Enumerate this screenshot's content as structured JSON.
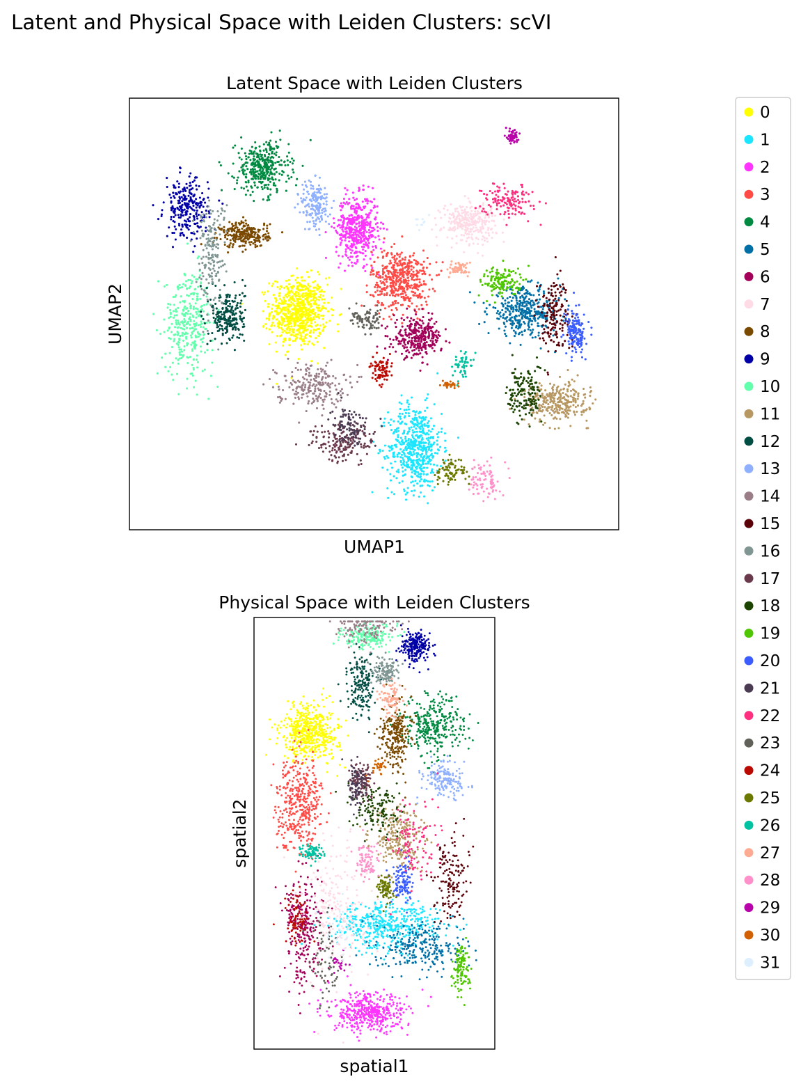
{
  "figure": {
    "suptitle": "Latent and Physical Space with Leiden Clusters: scVI"
  },
  "chart_data": [
    {
      "type": "scatter",
      "title": "Latent Space with Leiden Clusters",
      "xlabel": "UMAP1",
      "ylabel": "UMAP2",
      "xlim": [
        0,
        100
      ],
      "ylim": [
        0,
        100
      ],
      "grid": false,
      "series": [
        {
          "name": "0",
          "cluster": 0,
          "x": 34.5,
          "y": 50.5,
          "spread": [
            5.8,
            8.0
          ],
          "n": 720
        },
        {
          "name": "1",
          "cluster": 1,
          "x": 58.5,
          "y": 19.0,
          "spread": [
            5.5,
            10.0
          ],
          "n": 560
        },
        {
          "name": "2",
          "cluster": 2,
          "x": 46.5,
          "y": 70.0,
          "spread": [
            4.3,
            7.5
          ],
          "n": 470
        },
        {
          "name": "3",
          "cluster": 3,
          "x": 55.5,
          "y": 58.0,
          "spread": [
            6.0,
            7.0
          ],
          "n": 480
        },
        {
          "name": "4",
          "cluster": 4,
          "x": 27.0,
          "y": 84.0,
          "spread": [
            5.5,
            6.0
          ],
          "n": 360
        },
        {
          "name": "5",
          "cluster": 5,
          "x": 81.0,
          "y": 50.5,
          "spread": [
            7.5,
            5.5
          ],
          "n": 380
        },
        {
          "name": "6",
          "cluster": 6,
          "x": 59.0,
          "y": 44.5,
          "spread": [
            5.0,
            4.5
          ],
          "n": 300
        },
        {
          "name": "7",
          "cluster": 7,
          "x": 69.5,
          "y": 71.5,
          "spread": [
            5.5,
            4.5
          ],
          "n": 300
        },
        {
          "name": "8",
          "cluster": 8,
          "x": 23.5,
          "y": 68.5,
          "spread": [
            5.0,
            3.0
          ],
          "n": 250
        },
        {
          "name": "9",
          "cluster": 9,
          "x": 11.5,
          "y": 74.5,
          "spread": [
            4.5,
            7.0
          ],
          "n": 260
        },
        {
          "name": "10",
          "cluster": 10,
          "x": 12.0,
          "y": 48.0,
          "spread": [
            5.0,
            12.0
          ],
          "n": 330
        },
        {
          "name": "11",
          "cluster": 11,
          "x": 87.5,
          "y": 29.5,
          "spread": [
            6.5,
            4.5
          ],
          "n": 300
        },
        {
          "name": "12",
          "cluster": 12,
          "x": 20.0,
          "y": 49.5,
          "spread": [
            3.5,
            6.5
          ],
          "n": 220
        },
        {
          "name": "13",
          "cluster": 13,
          "x": 38.0,
          "y": 75.5,
          "spread": [
            3.0,
            6.0
          ],
          "n": 170
        },
        {
          "name": "14",
          "cluster": 14,
          "x": 37.0,
          "y": 33.5,
          "spread": [
            7.0,
            5.0
          ],
          "n": 210
        },
        {
          "name": "15",
          "cluster": 15,
          "x": 87.0,
          "y": 50.0,
          "spread": [
            3.5,
            9.0
          ],
          "n": 160
        },
        {
          "name": "16",
          "cluster": 16,
          "x": 16.5,
          "y": 64.0,
          "spread": [
            3.0,
            13.0
          ],
          "n": 170
        },
        {
          "name": "17",
          "cluster": 17,
          "x": 43.5,
          "y": 20.0,
          "spread": [
            6.5,
            4.5
          ],
          "n": 170
        },
        {
          "name": "18",
          "cluster": 18,
          "x": 81.0,
          "y": 31.5,
          "spread": [
            3.5,
            7.0
          ],
          "n": 150
        },
        {
          "name": "19",
          "cluster": 19,
          "x": 76.5,
          "y": 57.5,
          "spread": [
            4.5,
            3.5
          ],
          "n": 140
        },
        {
          "name": "20",
          "cluster": 20,
          "x": 91.5,
          "y": 45.5,
          "spread": [
            2.0,
            5.0
          ],
          "n": 150
        },
        {
          "name": "21",
          "cluster": 21,
          "x": 45.0,
          "y": 24.0,
          "spread": [
            4.0,
            4.5
          ],
          "n": 100
        },
        {
          "name": "22",
          "cluster": 22,
          "x": 77.5,
          "y": 76.5,
          "spread": [
            5.0,
            4.0
          ],
          "n": 140
        },
        {
          "name": "23",
          "cluster": 23,
          "x": 48.5,
          "y": 48.5,
          "spread": [
            3.5,
            2.5
          ],
          "n": 80
        },
        {
          "name": "24",
          "cluster": 24,
          "x": 51.5,
          "y": 36.5,
          "spread": [
            2.2,
            3.0
          ],
          "n": 80
        },
        {
          "name": "25",
          "cluster": 25,
          "x": 66.0,
          "y": 13.5,
          "spread": [
            3.5,
            3.5
          ],
          "n": 80
        },
        {
          "name": "26",
          "cluster": 26,
          "x": 68.0,
          "y": 38.0,
          "spread": [
            2.0,
            3.0
          ],
          "n": 50
        },
        {
          "name": "27",
          "cluster": 27,
          "x": 67.5,
          "y": 60.5,
          "spread": [
            2.2,
            1.5
          ],
          "n": 60
        },
        {
          "name": "28",
          "cluster": 28,
          "x": 73.0,
          "y": 11.5,
          "spread": [
            3.0,
            4.5
          ],
          "n": 80
        },
        {
          "name": "29",
          "cluster": 29,
          "x": 78.5,
          "y": 91.5,
          "spread": [
            1.0,
            2.0
          ],
          "n": 60
        },
        {
          "name": "30",
          "cluster": 30,
          "x": 65.5,
          "y": 33.5,
          "spread": [
            2.0,
            0.8
          ],
          "n": 30
        },
        {
          "name": "31",
          "cluster": 31,
          "x": 60.0,
          "y": 72.0,
          "spread": [
            1.5,
            1.5
          ],
          "n": 10
        }
      ]
    },
    {
      "type": "scatter",
      "title": "Physical Space with Leiden Clusters",
      "xlabel": "spatial1",
      "ylabel": "spatial2",
      "xlim": [
        0,
        100
      ],
      "ylim": [
        0,
        100
      ],
      "grid": false,
      "series": [
        {
          "name": "0",
          "cluster": 0,
          "x": 23.0,
          "y": 73.5,
          "spread": [
            12.0,
            6.5
          ],
          "n": 520
        },
        {
          "name": "1",
          "cluster": 1,
          "x": 55.0,
          "y": 28.5,
          "spread": [
            22.0,
            5.5
          ],
          "n": 480
        },
        {
          "name": "2",
          "cluster": 2,
          "x": 48.0,
          "y": 8.0,
          "spread": [
            16.0,
            4.5
          ],
          "n": 440
        },
        {
          "name": "3",
          "cluster": 3,
          "x": 18.5,
          "y": 57.0,
          "spread": [
            9.5,
            10.5
          ],
          "n": 400
        },
        {
          "name": "4",
          "cluster": 4,
          "x": 75.0,
          "y": 75.0,
          "spread": [
            13.0,
            7.0
          ],
          "n": 320
        },
        {
          "name": "5",
          "cluster": 5,
          "x": 70.5,
          "y": 23.5,
          "spread": [
            18.0,
            6.0
          ],
          "n": 260
        },
        {
          "name": "6",
          "cluster": 6,
          "x": 20.5,
          "y": 28.0,
          "spread": [
            8.0,
            13.0
          ],
          "n": 260
        },
        {
          "name": "7",
          "cluster": 7,
          "x": 34.0,
          "y": 33.0,
          "spread": [
            14.0,
            16.0
          ],
          "n": 220
        },
        {
          "name": "8",
          "cluster": 8,
          "x": 59.0,
          "y": 73.0,
          "spread": [
            6.0,
            8.0
          ],
          "n": 240
        },
        {
          "name": "9",
          "cluster": 9,
          "x": 67.5,
          "y": 93.5,
          "spread": [
            6.5,
            3.5
          ],
          "n": 220
        },
        {
          "name": "10",
          "cluster": 10,
          "x": 47.0,
          "y": 96.0,
          "spread": [
            11.0,
            3.0
          ],
          "n": 200
        },
        {
          "name": "11",
          "cluster": 11,
          "x": 60.0,
          "y": 49.0,
          "spread": [
            11.0,
            7.0
          ],
          "n": 240
        },
        {
          "name": "12",
          "cluster": 12,
          "x": 44.5,
          "y": 84.5,
          "spread": [
            5.5,
            7.0
          ],
          "n": 180
        },
        {
          "name": "13",
          "cluster": 13,
          "x": 79.5,
          "y": 62.5,
          "spread": [
            9.0,
            4.0
          ],
          "n": 160
        },
        {
          "name": "14",
          "cluster": 14,
          "x": 45.0,
          "y": 98.0,
          "spread": [
            14.0,
            4.0
          ],
          "n": 120
        },
        {
          "name": "15",
          "cluster": 15,
          "x": 82.0,
          "y": 40.0,
          "spread": [
            7.0,
            10.0
          ],
          "n": 140
        },
        {
          "name": "16",
          "cluster": 16,
          "x": 55.0,
          "y": 88.0,
          "spread": [
            6.0,
            3.0
          ],
          "n": 120
        },
        {
          "name": "17",
          "cluster": 17,
          "x": 45.0,
          "y": 62.5,
          "spread": [
            4.5,
            4.0
          ],
          "n": 110
        },
        {
          "name": "18",
          "cluster": 18,
          "x": 52.0,
          "y": 55.5,
          "spread": [
            10.0,
            6.0
          ],
          "n": 130
        },
        {
          "name": "19",
          "cluster": 19,
          "x": 86.5,
          "y": 18.5,
          "spread": [
            3.5,
            5.5
          ],
          "n": 120
        },
        {
          "name": "20",
          "cluster": 20,
          "x": 61.5,
          "y": 38.5,
          "spread": [
            5.0,
            5.5
          ],
          "n": 120
        },
        {
          "name": "21",
          "cluster": 21,
          "x": 42.5,
          "y": 61.0,
          "spread": [
            3.5,
            6.0
          ],
          "n": 90
        },
        {
          "name": "22",
          "cluster": 22,
          "x": 66.0,
          "y": 47.0,
          "spread": [
            10.0,
            11.0
          ],
          "n": 110
        },
        {
          "name": "23",
          "cluster": 23,
          "x": 29.0,
          "y": 20.0,
          "spread": [
            7.0,
            10.0
          ],
          "n": 70
        },
        {
          "name": "24",
          "cluster": 24,
          "x": 17.0,
          "y": 30.0,
          "spread": [
            5.0,
            7.0
          ],
          "n": 80
        },
        {
          "name": "25",
          "cluster": 25,
          "x": 54.5,
          "y": 37.0,
          "spread": [
            3.5,
            3.0
          ],
          "n": 90
        },
        {
          "name": "26",
          "cluster": 26,
          "x": 24.0,
          "y": 45.5,
          "spread": [
            4.5,
            2.0
          ],
          "n": 80
        },
        {
          "name": "27",
          "cluster": 27,
          "x": 57.5,
          "y": 81.0,
          "spread": [
            5.0,
            4.0
          ],
          "n": 90
        },
        {
          "name": "28",
          "cluster": 28,
          "x": 47.0,
          "y": 43.5,
          "spread": [
            5.0,
            5.0
          ],
          "n": 80
        },
        {
          "name": "29",
          "cluster": 29,
          "x": 36.0,
          "y": 20.0,
          "spread": [
            4.0,
            2.0
          ],
          "n": 20
        },
        {
          "name": "30",
          "cluster": 30,
          "x": 51.5,
          "y": 65.0,
          "spread": [
            4.0,
            2.5
          ],
          "n": 30
        },
        {
          "name": "31",
          "cluster": 31,
          "x": 36.0,
          "y": 27.0,
          "spread": [
            6.0,
            6.0
          ],
          "n": 30
        }
      ]
    }
  ],
  "legend": {
    "placement": "right",
    "items": [
      "0",
      "1",
      "2",
      "3",
      "4",
      "5",
      "6",
      "7",
      "8",
      "9",
      "10",
      "11",
      "12",
      "13",
      "14",
      "15",
      "16",
      "17",
      "18",
      "19",
      "20",
      "21",
      "22",
      "23",
      "24",
      "25",
      "26",
      "27",
      "28",
      "29",
      "30",
      "31"
    ]
  },
  "palette": [
    "#FFFF00",
    "#1CE6FF",
    "#FF34FF",
    "#FF4A46",
    "#008941",
    "#006FA6",
    "#A30059",
    "#FFDBE5",
    "#7A4900",
    "#0000A6",
    "#63FFAC",
    "#B79762",
    "#004D43",
    "#8FB0FF",
    "#997D87",
    "#5A0007",
    "#809693",
    "#6A3A4C",
    "#1B4400",
    "#4FC601",
    "#3B5DFF",
    "#4A3B53",
    "#FF2F80",
    "#61615A",
    "#BA0900",
    "#6B7900",
    "#00C2A0",
    "#FFAA92",
    "#FF90C9",
    "#B903AA",
    "#D16100",
    "#DDEFFF"
  ]
}
